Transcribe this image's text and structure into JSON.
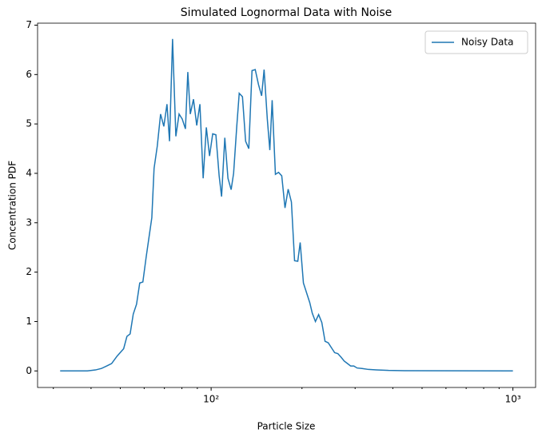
{
  "chart_data": {
    "type": "line",
    "title": "Simulated Lognormal Data with Noise",
    "x_label": "Particle Size",
    "y_label": "Concentration PDF",
    "xscale": "log",
    "legend": "upper right",
    "x": [
      31.6,
      38.9,
      41.4,
      43.3,
      45.1,
      46.8,
      48.8,
      51.3,
      52.6,
      53.9,
      55.2,
      56.6,
      58.0,
      59.4,
      60.9,
      62.4,
      63.6,
      64.7,
      66.3,
      68.0,
      69.7,
      71.4,
      72.8,
      74.5,
      76.4,
      78.3,
      80.2,
      82.2,
      83.7,
      85.3,
      87.4,
      89.6,
      91.8,
      94.1,
      96.4,
      98.8,
      101.2,
      103.7,
      106.3,
      108.3,
      111.0,
      113.7,
      116.5,
      118.7,
      121.6,
      123.9,
      127.0,
      130.1,
      133.3,
      136.6,
      140.0,
      143.5,
      147.0,
      149.8,
      153.5,
      156.5,
      159.3,
      163.3,
      167.3,
      171.4,
      175.7,
      180.0,
      184.5,
      189.0,
      193.7,
      197.3,
      202.2,
      207.2,
      212.3,
      216.3,
      221.6,
      227.1,
      232.7,
      238.5,
      244.4,
      250.4,
      256.6,
      263.0,
      269.4,
      276.1,
      282.9,
      289.9,
      297.1,
      304.4,
      316.3,
      332.2,
      352.8,
      387.1,
      437.9,
      1000
    ],
    "series": [
      {
        "name": "Noisy Data",
        "color": "#1f77b4",
        "values": [
          0,
          0,
          0.02,
          0.05,
          0.1,
          0.15,
          0.3,
          0.45,
          0.7,
          0.75,
          1.15,
          1.35,
          1.78,
          1.8,
          2.3,
          2.75,
          3.1,
          4.1,
          4.55,
          5.2,
          4.95,
          5.4,
          4.65,
          6.72,
          4.75,
          5.2,
          5.1,
          4.9,
          6.05,
          5.2,
          5.5,
          4.97,
          5.4,
          3.9,
          4.93,
          4.35,
          4.8,
          4.78,
          3.95,
          3.53,
          4.72,
          3.9,
          3.67,
          4.0,
          4.95,
          5.62,
          5.55,
          4.65,
          4.5,
          6.08,
          6.1,
          5.8,
          5.57,
          6.1,
          5.1,
          4.47,
          5.48,
          3.98,
          4.02,
          3.95,
          3.3,
          3.68,
          3.42,
          2.23,
          2.22,
          2.6,
          1.78,
          1.58,
          1.38,
          1.17,
          1.0,
          1.14,
          0.98,
          0.6,
          0.57,
          0.47,
          0.37,
          0.35,
          0.28,
          0.2,
          0.15,
          0.1,
          0.1,
          0.06,
          0.05,
          0.03,
          0.02,
          0.01,
          0.005,
          0
        ]
      }
    ],
    "xlim": [
      26.6,
      1189
    ],
    "ylim": [
      -0.335,
      7.04
    ],
    "xticks": [
      {
        "value": 100,
        "label": "10²"
      },
      {
        "value": 1000,
        "label": "10³"
      }
    ],
    "xminorticks": [
      30,
      40,
      50,
      60,
      70,
      80,
      90,
      200,
      300,
      400,
      500,
      600,
      700,
      800,
      900
    ],
    "yticks": [
      0,
      1,
      2,
      3,
      4,
      5,
      6,
      7
    ]
  }
}
